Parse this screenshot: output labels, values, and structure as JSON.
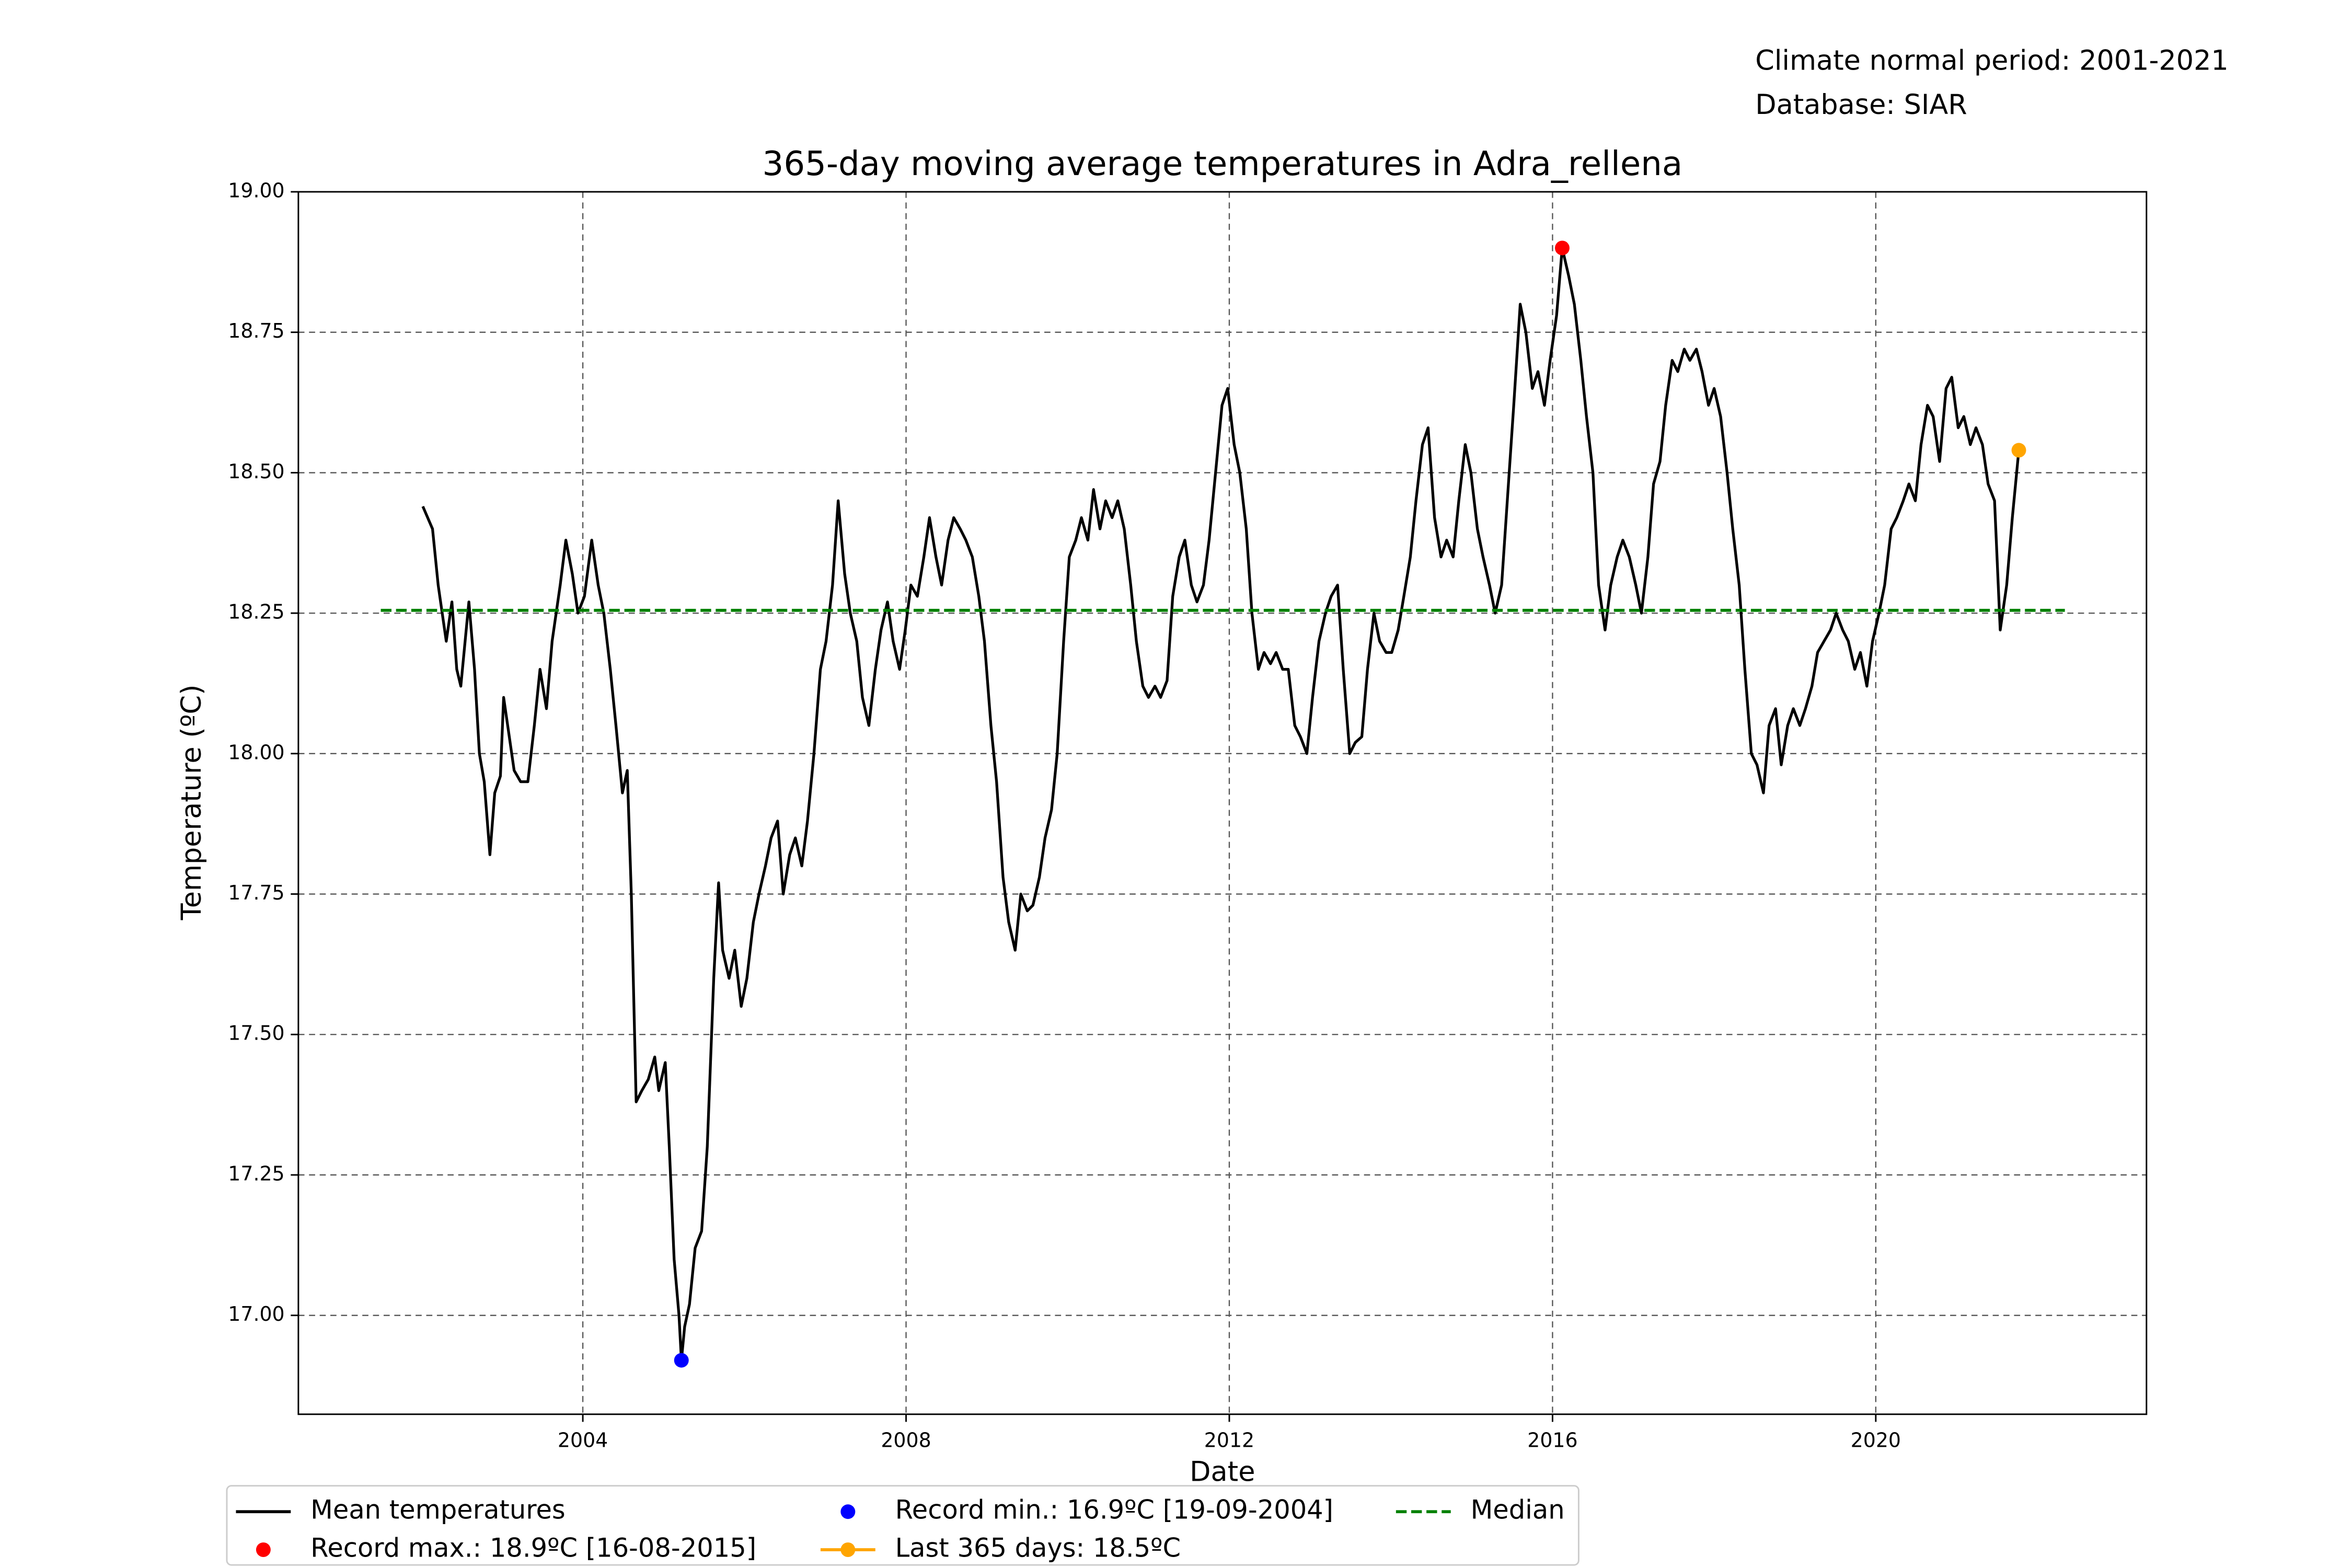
{
  "chart_data": {
    "type": "line",
    "title": "365-day moving average temperatures in Adra_rellena",
    "annotations": [
      "Climate normal period: 2001-2021",
      "Database: SIAR"
    ],
    "xlabel": "Date",
    "ylabel": "Temperature (ºC)",
    "xlim": [
      2000.48,
      2023.35
    ],
    "ylim": [
      16.824,
      19.0
    ],
    "xticks": [
      2004,
      2008,
      2012,
      2016,
      2020
    ],
    "yticks": [
      {
        "value": 17,
        "label": "17.00"
      },
      {
        "value": 17.25,
        "label": "17.25"
      },
      {
        "value": 17.5,
        "label": "17.50"
      },
      {
        "value": 17.75,
        "label": "17.75"
      },
      {
        "value": 18,
        "label": "18.00"
      },
      {
        "value": 18.25,
        "label": "18.25"
      },
      {
        "value": 18.5,
        "label": "18.50"
      },
      {
        "value": 18.75,
        "label": "18.75"
      },
      {
        "value": 19,
        "label": "19.00"
      }
    ],
    "grid": true,
    "legend": "bottom",
    "series": [
      {
        "name": "Mean temperatures",
        "color": "#000000",
        "style": "line",
        "x": [
          2002.02,
          2002.14,
          2002.21,
          2002.31,
          2002.38,
          2002.44,
          2002.49,
          2002.59,
          2002.66,
          2002.72,
          2002.78,
          2002.85,
          2002.91,
          2002.98,
          2003.02,
          2003.1,
          2003.15,
          2003.23,
          2003.32,
          2003.4,
          2003.47,
          2003.55,
          2003.62,
          2003.72,
          2003.79,
          2003.87,
          2003.94,
          2004.02,
          2004.11,
          2004.19,
          2004.26,
          2004.34,
          2004.41,
          2004.49,
          2004.55,
          2004.6,
          2004.66,
          2004.73,
          2004.81,
          2004.89,
          2004.94,
          2005.02,
          2005.07,
          2005.13,
          2005.19,
          2005.22,
          2005.26,
          2005.32,
          2005.39,
          2005.47,
          2005.54,
          2005.62,
          2005.68,
          2005.73,
          2005.81,
          2005.88,
          2005.96,
          2006.03,
          2006.11,
          2006.18,
          2006.26,
          2006.33,
          2006.41,
          2006.48,
          2006.56,
          2006.63,
          2006.71,
          2006.78,
          2006.86,
          2006.94,
          2007.01,
          2007.09,
          2007.16,
          2007.24,
          2007.31,
          2007.39,
          2007.46,
          2007.54,
          2007.62,
          2007.69,
          2007.77,
          2007.84,
          2007.92,
          2007.99,
          2008.06,
          2008.14,
          2008.22,
          2008.29,
          2008.37,
          2008.44,
          2008.52,
          2008.59,
          2008.67,
          2008.74,
          2008.82,
          2008.9,
          2008.97,
          2009.05,
          2009.12,
          2009.2,
          2009.27,
          2009.35,
          2009.42,
          2009.5,
          2009.57,
          2009.65,
          2009.72,
          2009.8,
          2009.87,
          2009.95,
          2010.02,
          2010.1,
          2010.17,
          2010.25,
          2010.32,
          2010.4,
          2010.47,
          2010.55,
          2010.62,
          2010.7,
          2010.78,
          2010.85,
          2010.93,
          2011.0,
          2011.08,
          2011.15,
          2011.23,
          2011.3,
          2011.38,
          2011.45,
          2011.53,
          2011.6,
          2011.68,
          2011.75,
          2011.83,
          2011.91,
          2011.98,
          2012.06,
          2012.13,
          2012.21,
          2012.28,
          2012.36,
          2012.43,
          2012.51,
          2012.58,
          2012.66,
          2012.73,
          2012.81,
          2012.88,
          2012.96,
          2013.03,
          2013.11,
          2013.19,
          2013.26,
          2013.34,
          2013.41,
          2013.49,
          2013.56,
          2013.64,
          2013.71,
          2013.79,
          2013.86,
          2013.94,
          2014.01,
          2014.09,
          2014.16,
          2014.24,
          2014.31,
          2014.39,
          2014.46,
          2014.54,
          2014.62,
          2014.69,
          2014.77,
          2014.84,
          2014.92,
          2014.99,
          2015.07,
          2015.14,
          2015.22,
          2015.29,
          2015.37,
          2015.44,
          2015.52,
          2015.6,
          2015.67,
          2015.75,
          2015.82,
          2015.9,
          2015.97,
          2016.05,
          2016.12,
          2016.2,
          2016.27,
          2016.35,
          2016.42,
          2016.5,
          2016.57,
          2016.65,
          2016.72,
          2016.8,
          2016.87,
          2016.95,
          2017.03,
          2017.1,
          2017.18,
          2017.25,
          2017.33,
          2017.4,
          2017.48,
          2017.55,
          2017.63,
          2017.7,
          2017.78,
          2017.85,
          2017.93,
          2018.0,
          2018.08,
          2018.16,
          2018.23,
          2018.31,
          2018.38,
          2018.46,
          2018.53,
          2018.61,
          2018.68,
          2018.76,
          2018.83,
          2018.91,
          2018.98,
          2019.06,
          2019.13,
          2019.21,
          2019.28,
          2019.36,
          2019.44,
          2019.51,
          2019.59,
          2019.66,
          2019.74,
          2019.81,
          2019.89,
          2019.96,
          2020.04,
          2020.11,
          2020.19,
          2020.26,
          2020.34,
          2020.41,
          2020.49,
          2020.56,
          2020.64,
          2020.71,
          2020.79,
          2020.87,
          2020.94,
          2021.02,
          2021.09,
          2021.17,
          2021.24,
          2021.32,
          2021.39,
          2021.47,
          2021.54,
          2021.62,
          2021.69,
          2021.77
        ],
        "values": [
          18.44,
          18.4,
          18.3,
          18.2,
          18.27,
          18.15,
          18.12,
          18.27,
          18.15,
          18.0,
          17.95,
          17.82,
          17.93,
          17.96,
          18.1,
          18.02,
          17.97,
          17.95,
          17.95,
          18.05,
          18.15,
          18.08,
          18.2,
          18.3,
          18.38,
          18.32,
          18.25,
          18.28,
          18.38,
          18.3,
          18.25,
          18.15,
          18.05,
          17.93,
          17.97,
          17.75,
          17.38,
          17.4,
          17.42,
          17.46,
          17.4,
          17.45,
          17.3,
          17.1,
          17.0,
          16.92,
          16.98,
          17.02,
          17.12,
          17.15,
          17.3,
          17.6,
          17.77,
          17.65,
          17.6,
          17.65,
          17.55,
          17.6,
          17.7,
          17.75,
          17.8,
          17.85,
          17.88,
          17.75,
          17.82,
          17.85,
          17.8,
          17.88,
          18.0,
          18.15,
          18.2,
          18.3,
          18.45,
          18.32,
          18.25,
          18.2,
          18.1,
          18.05,
          18.15,
          18.22,
          18.27,
          18.2,
          18.15,
          18.22,
          18.3,
          18.28,
          18.35,
          18.42,
          18.35,
          18.3,
          18.38,
          18.42,
          18.4,
          18.38,
          18.35,
          18.28,
          18.2,
          18.05,
          17.95,
          17.78,
          17.7,
          17.65,
          17.75,
          17.72,
          17.73,
          17.78,
          17.85,
          17.9,
          18.0,
          18.2,
          18.35,
          18.38,
          18.42,
          18.38,
          18.47,
          18.4,
          18.45,
          18.42,
          18.45,
          18.4,
          18.3,
          18.2,
          18.12,
          18.1,
          18.12,
          18.1,
          18.13,
          18.28,
          18.35,
          18.38,
          18.3,
          18.27,
          18.3,
          18.38,
          18.5,
          18.62,
          18.65,
          18.55,
          18.5,
          18.4,
          18.25,
          18.15,
          18.18,
          18.16,
          18.18,
          18.15,
          18.15,
          18.05,
          18.03,
          18.0,
          18.1,
          18.2,
          18.25,
          18.28,
          18.3,
          18.15,
          18.0,
          18.02,
          18.03,
          18.15,
          18.25,
          18.2,
          18.18,
          18.18,
          18.22,
          18.28,
          18.35,
          18.45,
          18.55,
          18.58,
          18.42,
          18.35,
          18.38,
          18.35,
          18.45,
          18.55,
          18.5,
          18.4,
          18.35,
          18.3,
          18.25,
          18.3,
          18.45,
          18.62,
          18.8,
          18.75,
          18.65,
          18.68,
          18.62,
          18.7,
          18.78,
          18.9,
          18.85,
          18.8,
          18.7,
          18.6,
          18.5,
          18.3,
          18.22,
          18.3,
          18.35,
          18.38,
          18.35,
          18.3,
          18.25,
          18.35,
          18.48,
          18.52,
          18.62,
          18.7,
          18.68,
          18.72,
          18.7,
          18.72,
          18.68,
          18.62,
          18.65,
          18.6,
          18.5,
          18.4,
          18.3,
          18.15,
          18.0,
          17.98,
          17.93,
          18.05,
          18.08,
          17.98,
          18.05,
          18.08,
          18.05,
          18.08,
          18.12,
          18.18,
          18.2,
          18.22,
          18.25,
          18.22,
          18.2,
          18.15,
          18.18,
          18.12,
          18.2,
          18.25,
          18.3,
          18.4,
          18.42,
          18.45,
          18.48,
          18.45,
          18.55,
          18.62,
          18.6,
          18.52,
          18.65,
          18.67,
          18.58,
          18.6,
          18.55,
          18.58,
          18.55,
          18.48,
          18.45,
          18.22,
          18.3,
          18.42,
          18.54
        ]
      },
      {
        "name": "Record max.: 18.9ºC [16-08-2015]",
        "color": "#ff0000",
        "style": "dot",
        "x": [
          2016.12
        ],
        "values": [
          18.9
        ]
      },
      {
        "name": "Record min.: 16.9ºC [19-09-2004]",
        "color": "#0000ff",
        "style": "dot",
        "x": [
          2005.22
        ],
        "values": [
          16.92
        ]
      },
      {
        "name": "Last 365 days: 18.5ºC",
        "color": "#ffa500",
        "style": "dot-line",
        "x": [
          2021.77
        ],
        "values": [
          18.54
        ]
      },
      {
        "name": "Median",
        "color": "#008000",
        "style": "dashed",
        "x": [
          2001.5,
          2022.34
        ],
        "values": [
          18.255,
          18.255
        ]
      }
    ]
  }
}
